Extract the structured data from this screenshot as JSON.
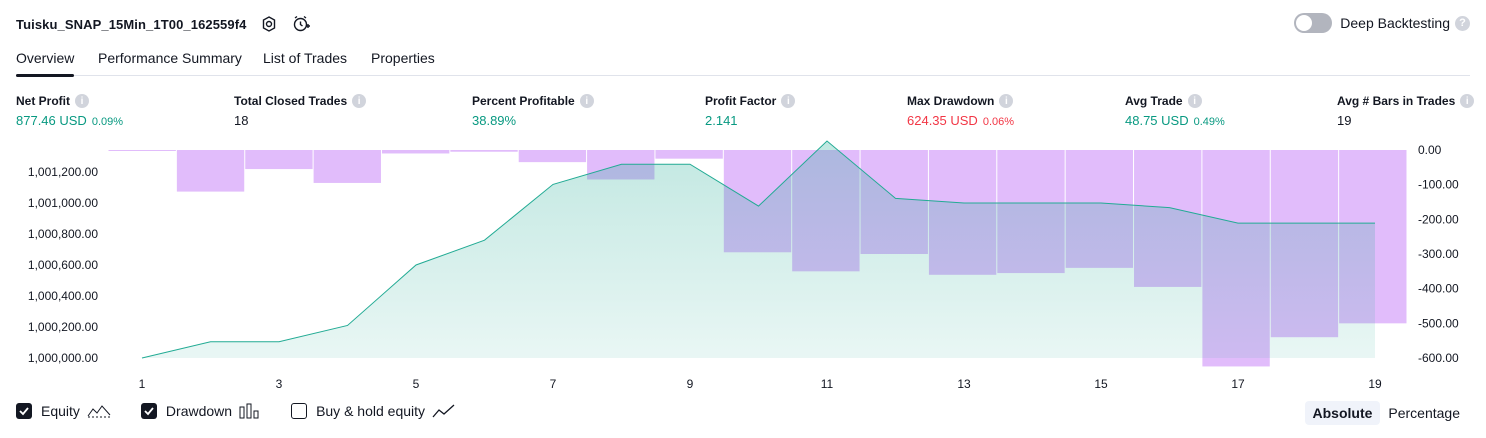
{
  "header": {
    "title": "Tuisku_SNAP_15Min_1T00_162559f4",
    "deep_backtesting_label": "Deep Backtesting",
    "help_glyph": "?"
  },
  "tabs": [
    {
      "label": "Overview",
      "active": true
    },
    {
      "label": "Performance Summary",
      "active": false
    },
    {
      "label": "List of Trades",
      "active": false
    },
    {
      "label": "Properties",
      "active": false
    }
  ],
  "metrics": [
    {
      "label": "Net Profit",
      "value": "877.46 USD",
      "pct": "0.09%",
      "color": "green"
    },
    {
      "label": "Total Closed Trades",
      "value": "18",
      "pct": "",
      "color": "dark"
    },
    {
      "label": "Percent Profitable",
      "value": "38.89%",
      "pct": "",
      "color": "green"
    },
    {
      "label": "Profit Factor",
      "value": "2.141",
      "pct": "",
      "color": "green"
    },
    {
      "label": "Max Drawdown",
      "value": "624.35 USD",
      "pct": "0.06%",
      "color": "red"
    },
    {
      "label": "Avg Trade",
      "value": "48.75 USD",
      "pct": "0.49%",
      "color": "green"
    },
    {
      "label": "Avg # Bars in Trades",
      "value": "19",
      "pct": "",
      "color": "dark"
    }
  ],
  "info_glyph": "i",
  "chart_data": {
    "type": "area",
    "x": [
      1,
      2,
      3,
      4,
      5,
      6,
      7,
      8,
      9,
      10,
      11,
      12,
      13,
      14,
      15,
      16,
      17,
      18,
      19
    ],
    "x_ticks": [
      1,
      3,
      5,
      7,
      9,
      11,
      13,
      15,
      17,
      19
    ],
    "equity": [
      1000000,
      1000105,
      1000105,
      1000210,
      1000600,
      1000760,
      1001120,
      1001250,
      1001250,
      1000980,
      1001400,
      1001030,
      1001000,
      1001000,
      1001000,
      1000970,
      1000870,
      1000870,
      1000870
    ],
    "drawdown": [
      -2,
      -120,
      -55,
      -95,
      -10,
      -5,
      -35,
      -85,
      -25,
      -295,
      -350,
      -300,
      -360,
      -355,
      -340,
      -395,
      -624.35,
      -540,
      -500
    ],
    "left_axis": {
      "min": 1000000,
      "max": 1001200,
      "ticks": [
        "1,000,000.00",
        "1,000,200.00",
        "1,000,400.00",
        "1,000,600.00",
        "1,000,800.00",
        "1,001,000.00",
        "1,001,200.00"
      ]
    },
    "right_axis": {
      "min": -600,
      "max": 0,
      "ticks": [
        "0.00",
        "-100.00",
        "-200.00",
        "-300.00",
        "-400.00",
        "-500.00",
        "-600.00"
      ]
    },
    "equity_color": "#22ab94",
    "drawdown_color": "#e1bcfb"
  },
  "legend": {
    "equity_label": "Equity",
    "drawdown_label": "Drawdown",
    "buy_hold_label": "Buy & hold equity"
  },
  "modes": {
    "absolute_label": "Absolute",
    "percentage_label": "Percentage"
  }
}
